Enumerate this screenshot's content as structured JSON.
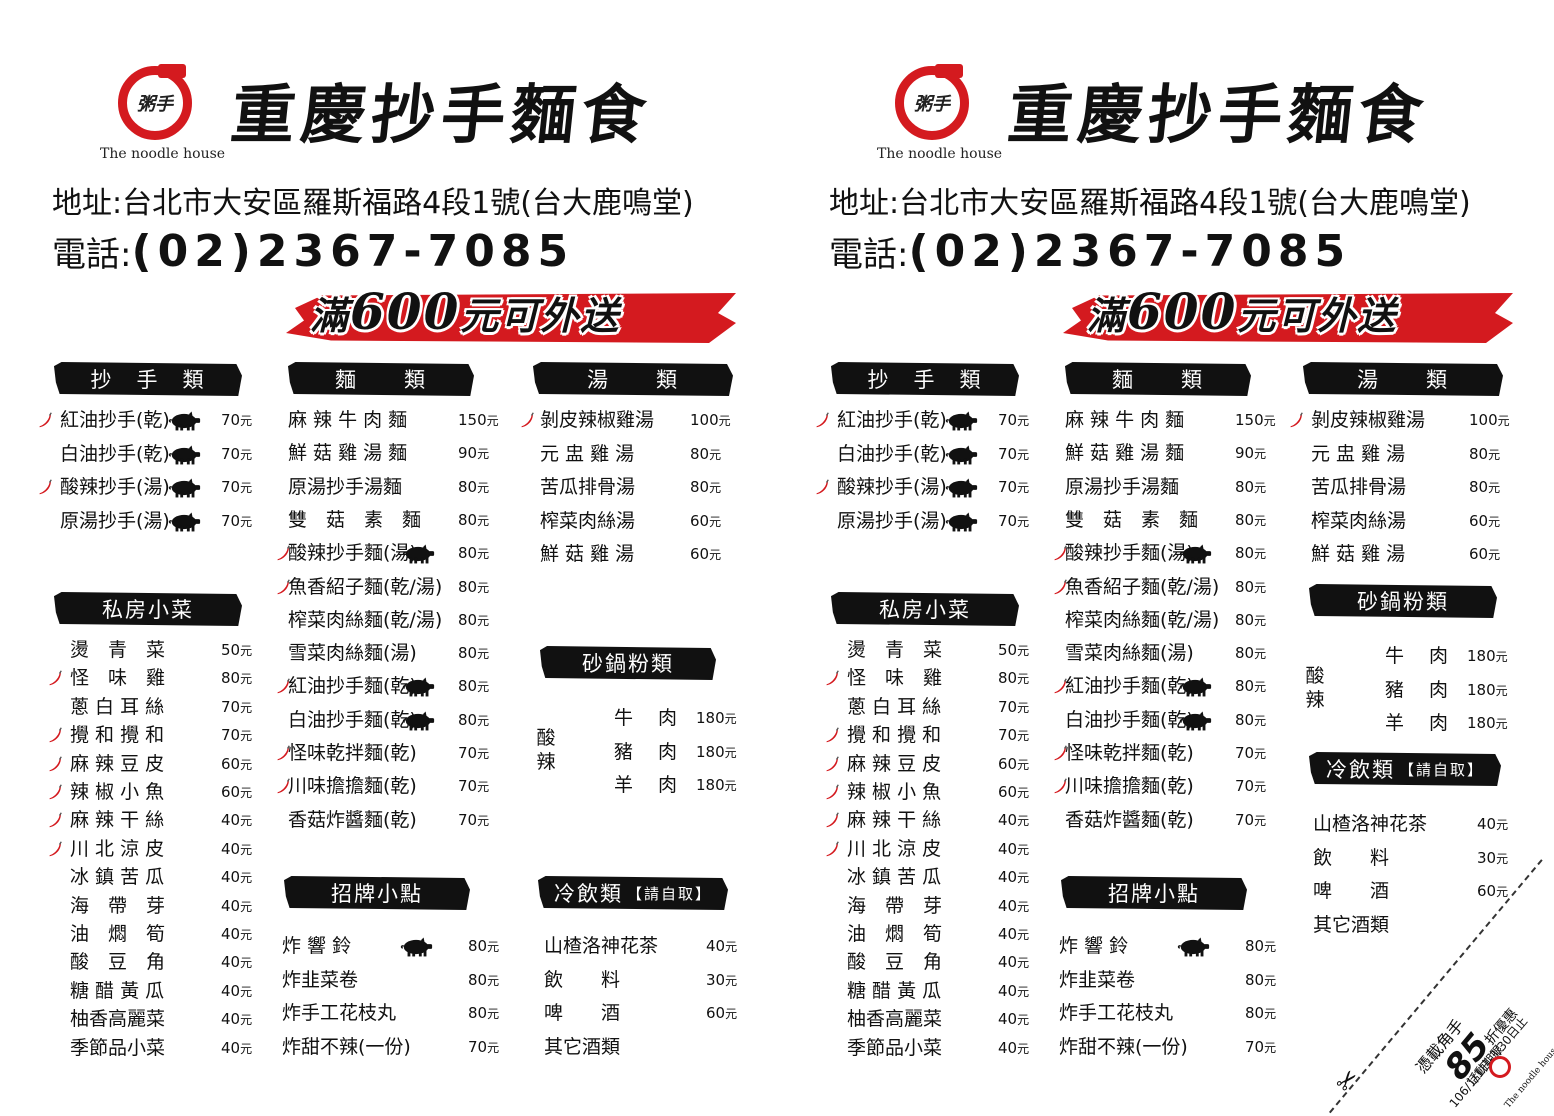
{
  "brand": {
    "logo_script": "粥手",
    "logo_subtitle": "The noodle house",
    "title": "重慶抄手麵食"
  },
  "contact": {
    "address": "地址:台北市大安區羅斯福路4段1號(台大鹿鳴堂)",
    "phone_label": "電話:",
    "phone_number": "(02)2367-7085"
  },
  "banner": {
    "prefix": "滿",
    "amount": "600",
    "suffix": "元可外送"
  },
  "unit": "元",
  "spicy_label": "酸辣",
  "sections": {
    "chaoshou": {
      "header": "抄　手　類",
      "items": [
        {
          "name": "紅油抄手(乾)",
          "price": "70",
          "chili": true,
          "pork": true
        },
        {
          "name": "白油抄手(乾)",
          "price": "70",
          "chili": false,
          "pork": true
        },
        {
          "name": "酸辣抄手(湯)",
          "price": "70",
          "chili": true,
          "pork": true
        },
        {
          "name": "原湯抄手(湯)",
          "price": "70",
          "chili": false,
          "pork": true
        }
      ]
    },
    "sifang": {
      "header": "私房小菜",
      "items": [
        {
          "name": "燙　青　菜",
          "price": "50",
          "chili": false
        },
        {
          "name": "怪　味　雞",
          "price": "80",
          "chili": true
        },
        {
          "name": "蔥 白 耳 絲",
          "price": "70",
          "chili": false
        },
        {
          "name": "攪 和 攪 和",
          "price": "70",
          "chili": true
        },
        {
          "name": "麻 辣 豆 皮",
          "price": "60",
          "chili": true
        },
        {
          "name": "辣 椒 小 魚",
          "price": "60",
          "chili": true
        },
        {
          "name": "麻 辣 干 絲",
          "price": "40",
          "chili": true
        },
        {
          "name": "川 北 涼 皮",
          "price": "40",
          "chili": true
        },
        {
          "name": "冰 鎮 苦 瓜",
          "price": "40",
          "chili": false
        },
        {
          "name": "海　帶　芽",
          "price": "40",
          "chili": false
        },
        {
          "name": "油　燜　筍",
          "price": "40",
          "chili": false
        },
        {
          "name": "酸　豆　角",
          "price": "40",
          "chili": false
        },
        {
          "name": "糖 醋 黃 瓜",
          "price": "40",
          "chili": false
        },
        {
          "name": "柚香高麗菜",
          "price": "40",
          "chili": false
        },
        {
          "name": "季節品小菜",
          "price": "40",
          "chili": false
        }
      ]
    },
    "mian": {
      "header": "麵　　類",
      "items": [
        {
          "name": "麻 辣 牛 肉 麵",
          "price": "150",
          "chili": false,
          "pork": false
        },
        {
          "name": "鮮 菇 雞 湯 麵",
          "price": "90",
          "chili": false,
          "pork": false
        },
        {
          "name": "原湯抄手湯麵",
          "price": "80",
          "chili": false,
          "pork": false
        },
        {
          "name": "雙　菇　素　麵",
          "price": "80",
          "chili": false,
          "pork": false
        },
        {
          "name": "酸辣抄手麵(湯)",
          "price": "80",
          "chili": true,
          "pork": true
        },
        {
          "name": "魚香紹子麵(乾/湯)",
          "price": "80",
          "chili": true,
          "pork": false
        },
        {
          "name": "榨菜肉絲麵(乾/湯)",
          "price": "80",
          "chili": false,
          "pork": false
        },
        {
          "name": "雪菜肉絲麵(湯)",
          "price": "80",
          "chili": false,
          "pork": false
        },
        {
          "name": "紅油抄手麵(乾)",
          "price": "80",
          "chili": true,
          "pork": true
        },
        {
          "name": "白油抄手麵(乾)",
          "price": "80",
          "chili": false,
          "pork": true
        },
        {
          "name": "怪味乾拌麵(乾)",
          "price": "70",
          "chili": true,
          "pork": false
        },
        {
          "name": "川味擔擔麵(乾)",
          "price": "70",
          "chili": true,
          "pork": false
        },
        {
          "name": "香菇炸醬麵(乾)",
          "price": "70",
          "chili": false,
          "pork": false
        }
      ]
    },
    "zhaopai": {
      "header": "招牌小點",
      "items": [
        {
          "name": "炸 響 鈴",
          "price": "80",
          "pork": true
        },
        {
          "name": "炸韭菜卷",
          "price": "80",
          "pork": false
        },
        {
          "name": "炸手工花枝丸",
          "price": "80",
          "pork": false
        },
        {
          "name": "炸甜不辣(一份)",
          "price": "70",
          "pork": false
        }
      ]
    },
    "tang": {
      "header": "湯　　類",
      "items": [
        {
          "name": "剝皮辣椒雞湯",
          "price": "100",
          "chili": true
        },
        {
          "name": "元 盅 雞 湯",
          "price": "80",
          "chili": false
        },
        {
          "name": "苦瓜排骨湯",
          "price": "80",
          "chili": false
        },
        {
          "name": "榨菜肉絲湯",
          "price": "60",
          "chili": false
        },
        {
          "name": "鮮 菇 雞 湯",
          "price": "60",
          "chili": false
        }
      ]
    },
    "shaguo": {
      "header": "砂鍋粉類",
      "items": [
        {
          "name": "牛　 肉",
          "price": "180"
        },
        {
          "name": "豬　 肉",
          "price": "180"
        },
        {
          "name": "羊　 肉",
          "price": "180"
        }
      ]
    },
    "drinks": {
      "header": "冷飲類",
      "note": "【請自取】",
      "items": [
        {
          "name": "山楂洛神花茶",
          "price": "40"
        },
        {
          "name": "飲　　料",
          "price": "30"
        },
        {
          "name": "啤　　酒",
          "price": "60"
        },
        {
          "name": "其它酒類",
          "price": ""
        }
      ]
    }
  },
  "coupon": {
    "line1": "憑載角手",
    "discount": "85",
    "discount_suffix": "折優惠",
    "period": "活動期限",
    "dates": "106/1/1日-3/30日止",
    "logo_subtitle": "The noodle house"
  },
  "colors": {
    "accent_red": "#d41a1f",
    "black": "#111111"
  },
  "icons": {
    "chili": "chili-pepper-icon",
    "pork": "pig-icon",
    "scissors": "scissors-icon"
  }
}
